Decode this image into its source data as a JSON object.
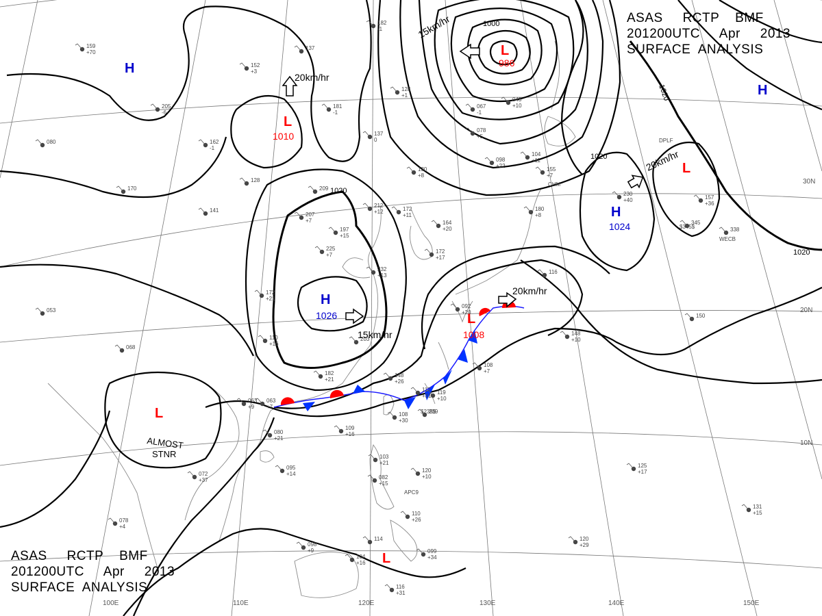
{
  "title": {
    "line1": "ASAS     RCTP    BMF",
    "line2": "201200UTC     Apr     2013",
    "line3": "SURFACE  ANALYSIS"
  },
  "colors": {
    "low": "#ff0000",
    "high": "#0000cc",
    "isobar": "#000000",
    "grid": "#777777",
    "coast": "#8a8a8a",
    "warm_front": "#ff0000",
    "cold_front": "#0033ff"
  },
  "lat_labels": [
    "30N",
    "20N",
    "10N"
  ],
  "lon_labels": [
    "100E",
    "110E",
    "120E",
    "130E",
    "140E",
    "150E"
  ],
  "isobar_labels": [
    "1000",
    "1020",
    "1020",
    "1020",
    "1020"
  ],
  "pressure_centers": [
    {
      "type": "L",
      "value": "986"
    },
    {
      "type": "L",
      "value": "1010"
    },
    {
      "type": "L",
      "value": "1008"
    },
    {
      "type": "H",
      "value": "1026"
    },
    {
      "type": "H",
      "value": "1024"
    },
    {
      "type": "H",
      "value": ""
    },
    {
      "type": "H",
      "value": ""
    },
    {
      "type": "L",
      "value": ""
    },
    {
      "type": "L",
      "value": ""
    },
    {
      "type": "L",
      "value": ""
    }
  ],
  "motion_labels": [
    "15km/hr",
    "20km/hr",
    "15km/hr",
    "20km/hr",
    "20km/hr"
  ],
  "annotation": {
    "line1": "ALMOST",
    "line2": "STNR"
  },
  "stations": [
    {
      "a": "159",
      "b": "+70"
    },
    {
      "a": "152",
      "b": "+3"
    },
    {
      "a": "137",
      "b": ""
    },
    {
      "a": "205",
      "b": "-6"
    },
    {
      "a": "162",
      "b": "-1"
    },
    {
      "a": "080",
      "b": ""
    },
    {
      "a": "128",
      "b": ""
    },
    {
      "a": "181",
      "b": "-1"
    },
    {
      "a": "137",
      "b": "0"
    },
    {
      "a": "128",
      "b": "+1"
    },
    {
      "a": "170",
      "b": ""
    },
    {
      "a": "141",
      "b": ""
    },
    {
      "a": "209",
      "b": ""
    },
    {
      "a": "207",
      "b": "+7"
    },
    {
      "a": "197",
      "b": "+15"
    },
    {
      "a": "212",
      "b": "+12"
    },
    {
      "a": "172",
      "b": "+11"
    },
    {
      "a": "225",
      "b": "+7"
    },
    {
      "a": "164",
      "b": "+20"
    },
    {
      "a": "172",
      "b": "+17"
    },
    {
      "a": "232",
      "b": "+13"
    },
    {
      "a": "172",
      "b": "+21"
    },
    {
      "a": "098",
      "b": "+22"
    },
    {
      "a": "104",
      "b": "+11"
    },
    {
      "a": "180",
      "b": "+8"
    },
    {
      "a": "155",
      "b": "+7"
    },
    {
      "a": "078",
      "b": "+5"
    },
    {
      "a": "043",
      "b": "+10"
    },
    {
      "a": "067",
      "b": "-1"
    },
    {
      "a": "063",
      "b": "+7"
    },
    {
      "a": "053",
      "b": ""
    },
    {
      "a": "068",
      "b": ""
    },
    {
      "a": "110",
      "b": "+16"
    },
    {
      "a": "092",
      "b": "+20"
    },
    {
      "a": "203",
      "b": ""
    },
    {
      "a": "182",
      "b": "+21"
    },
    {
      "a": "148",
      "b": "+26"
    },
    {
      "a": "117",
      "b": "+31"
    },
    {
      "a": "119",
      "b": "+10"
    },
    {
      "a": "108",
      "b": "+7"
    },
    {
      "a": "108",
      "b": "+30"
    },
    {
      "a": "109",
      "b": "+16"
    },
    {
      "a": "080",
      "b": "+21"
    },
    {
      "a": "063",
      "b": "+9"
    },
    {
      "a": "095",
      "b": "+14"
    },
    {
      "a": "072",
      "b": "+37"
    },
    {
      "a": "103",
      "b": "+21"
    },
    {
      "a": "082",
      "b": "+15"
    },
    {
      "a": "120",
      "b": "+10"
    },
    {
      "a": "110",
      "b": "+26"
    },
    {
      "a": "098",
      "b": "+9"
    },
    {
      "a": "104",
      "b": "+16"
    },
    {
      "a": "114",
      "b": ""
    },
    {
      "a": "099",
      "b": "+34"
    },
    {
      "a": "116",
      "b": "+31"
    },
    {
      "a": "078",
      "b": "+4"
    },
    {
      "a": "148",
      "b": "+10"
    },
    {
      "a": "150",
      "b": ""
    },
    {
      "a": "125",
      "b": "+17"
    },
    {
      "a": "120",
      "b": "+29"
    },
    {
      "a": "131",
      "b": "+15"
    },
    {
      "a": "230",
      "b": "+40"
    },
    {
      "a": "157",
      "b": "+36"
    },
    {
      "a": "338",
      "b": ""
    },
    {
      "a": "116",
      "b": ""
    },
    {
      "a": "182",
      "b": "-1"
    },
    {
      "a": "130",
      "b": "+8"
    },
    {
      "a": "239",
      "b": ""
    },
    {
      "a": "345",
      "b": ""
    }
  ],
  "station_ids": [
    "DPLF",
    "WECB",
    "CHM",
    "APC9",
    "$239$",
    "$345$"
  ]
}
